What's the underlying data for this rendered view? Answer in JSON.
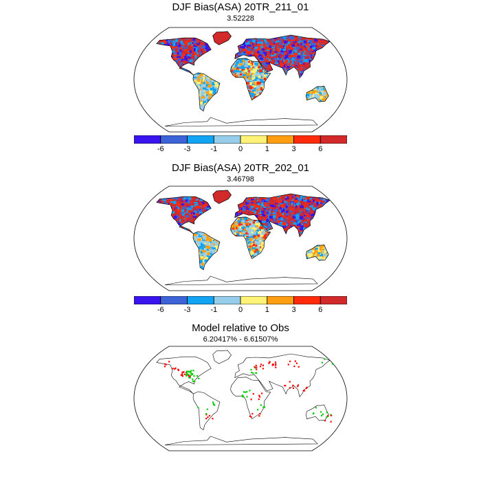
{
  "panels": [
    {
      "title": "DJF Bias(ASA) 20TR_211_01",
      "subtitle": "3.52228"
    },
    {
      "title": "DJF Bias(ASA) 20TR_202_01",
      "subtitle": "3.46798"
    },
    {
      "title": "Model relative to Obs",
      "subtitle": "6.20417% - 6.61507%"
    }
  ],
  "colorbar": {
    "colors": [
      "#3a14ee",
      "#3c64d8",
      "#12a4f4",
      "#96cdea",
      "#fef277",
      "#fe9e10",
      "#ff2b0b",
      "#d22a2a"
    ],
    "labels": [
      "-6",
      "-3",
      "-1",
      "0",
      "1",
      "3",
      "6"
    ]
  }
}
